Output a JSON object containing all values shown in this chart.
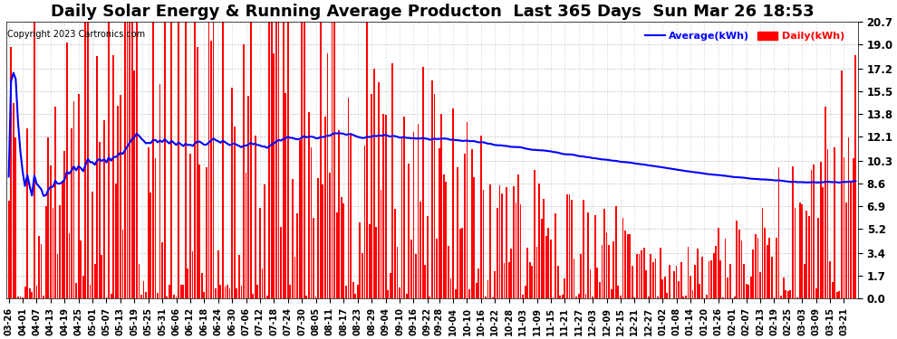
{
  "title": "Daily Solar Energy & Running Average Producton  Last 365 Days  Sun Mar 26 18:53",
  "copyright": "Copyright 2023 Cartronics.com",
  "legend_avg": "Average(kWh)",
  "legend_daily": "Daily(kWh)",
  "yticks": [
    0.0,
    1.7,
    3.4,
    5.2,
    6.9,
    8.6,
    10.3,
    12.1,
    13.8,
    15.5,
    17.2,
    19.0,
    20.7
  ],
  "ylim": [
    0.0,
    20.7
  ],
  "bar_color": "#ff0000",
  "bar_width": 0.7,
  "avg_color": "#0000ff",
  "avg_linewidth": 1.5,
  "background_color": "#ffffff",
  "grid_color": "#aaaaaa",
  "title_fontsize": 13,
  "avg_value": 10.3,
  "n_days": 365,
  "x_tick_labels": [
    "03-26",
    "04-01",
    "04-07",
    "04-13",
    "04-19",
    "04-25",
    "05-01",
    "05-07",
    "05-13",
    "05-19",
    "05-25",
    "05-31",
    "06-06",
    "06-12",
    "06-18",
    "06-24",
    "06-30",
    "07-06",
    "07-12",
    "07-18",
    "07-24",
    "07-30",
    "08-05",
    "08-11",
    "08-17",
    "08-23",
    "08-29",
    "09-04",
    "09-10",
    "09-16",
    "09-22",
    "09-28",
    "10-04",
    "10-10",
    "10-16",
    "10-22",
    "10-28",
    "11-03",
    "11-09",
    "11-15",
    "11-21",
    "11-27",
    "12-03",
    "12-09",
    "12-15",
    "12-21",
    "12-27",
    "01-02",
    "01-08",
    "01-14",
    "01-20",
    "01-26",
    "02-01",
    "02-07",
    "02-13",
    "02-19",
    "02-25",
    "03-03",
    "03-09",
    "03-15",
    "03-21"
  ],
  "x_tick_positions_frac": [
    0.0,
    0.0164,
    0.0329,
    0.0493,
    0.0658,
    0.0822,
    0.0986,
    0.1151,
    0.1315,
    0.148,
    0.1644,
    0.1808,
    0.1973,
    0.2137,
    0.2301,
    0.2466,
    0.263,
    0.2795,
    0.2959,
    0.3123,
    0.3288,
    0.3452,
    0.3616,
    0.3781,
    0.3945,
    0.411,
    0.4274,
    0.4438,
    0.4603,
    0.4767,
    0.4932,
    0.5096,
    0.526,
    0.5425,
    0.5589,
    0.5753,
    0.5918,
    0.6082,
    0.6247,
    0.6411,
    0.6575,
    0.674,
    0.6904,
    0.7068,
    0.7233,
    0.7397,
    0.7562,
    0.7726,
    0.789,
    0.8055,
    0.8219,
    0.8384,
    0.8548,
    0.8712,
    0.8877,
    0.9041,
    0.9205,
    0.937,
    0.9534,
    0.9699,
    0.9863
  ]
}
